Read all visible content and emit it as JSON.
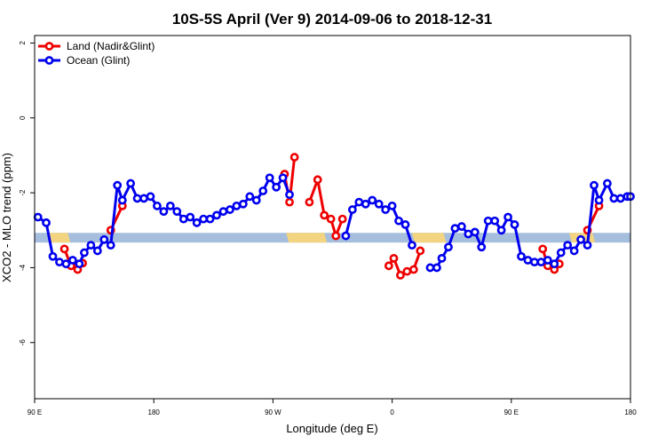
{
  "chart_data": {
    "type": "line",
    "title": "10S-5S April (Ver 9)   2014-09-06 to 2018-12-31",
    "xlabel": "Longitude (deg E)",
    "ylabel": "XCO2 - MLO trend (ppm)",
    "xlim": [
      0,
      360
    ],
    "ylim": [
      -7.5,
      2.2
    ],
    "x_ticks": [
      {
        "value": 0,
        "label": "90 E"
      },
      {
        "value": 72,
        "label": "180"
      },
      {
        "value": 144,
        "label": "90 W"
      },
      {
        "value": 216,
        "label": "0"
      },
      {
        "value": 288,
        "label": "90 E"
      },
      {
        "value": 360,
        "label": "180"
      }
    ],
    "y_ticks": [
      {
        "value": 2,
        "label": "2"
      },
      {
        "value": 0,
        "label": "0"
      },
      {
        "value": -2,
        "label": "-2"
      },
      {
        "value": -4,
        "label": "-4"
      },
      {
        "value": -6,
        "label": "-6"
      }
    ],
    "grid": false,
    "legend": "top-left",
    "map_band": {
      "y_center": -3.2,
      "half_height": 0.13,
      "ocean_color": "#a6bedd",
      "land_color": "#f7d57a",
      "land_ranges": [
        [
          8,
          20
        ],
        [
          152,
          175
        ],
        [
          228,
          247
        ],
        [
          323,
          337
        ]
      ]
    },
    "series": [
      {
        "name": "Land (Nadir&Glint)",
        "color": "#ee0000",
        "segments": [
          [
            [
              18,
              -3.5
            ],
            [
              22,
              -3.95
            ],
            [
              26,
              -4.05
            ],
            [
              29,
              -3.88
            ]
          ],
          [
            [
              46,
              -3.0
            ],
            [
              53,
              -2.35
            ]
          ],
          [
            [
              151,
              -1.5
            ],
            [
              154,
              -2.25
            ],
            [
              157,
              -1.05
            ]
          ],
          [
            [
              166,
              -2.25
            ],
            [
              171,
              -1.65
            ],
            [
              175,
              -2.6
            ],
            [
              179,
              -2.7
            ],
            [
              182,
              -3.15
            ],
            [
              186,
              -2.7
            ]
          ],
          [
            [
              214,
              -3.95
            ],
            [
              217,
              -3.75
            ],
            [
              221,
              -4.2
            ],
            [
              225,
              -4.1
            ],
            [
              229,
              -4.05
            ],
            [
              233,
              -3.55
            ]
          ],
          [
            [
              307,
              -3.5
            ],
            [
              310,
              -3.95
            ],
            [
              314,
              -4.05
            ],
            [
              317,
              -3.9
            ]
          ],
          [
            [
              334,
              -3.0
            ],
            [
              341,
              -2.35
            ]
          ]
        ]
      },
      {
        "name": "Ocean (Glint)",
        "color": "#0000ee",
        "segments": [
          [
            [
              2,
              -2.65
            ],
            [
              7,
              -2.8
            ],
            [
              11,
              -3.7
            ],
            [
              15,
              -3.85
            ],
            [
              19,
              -3.9
            ],
            [
              23,
              -3.8
            ],
            [
              27,
              -3.9
            ],
            [
              30,
              -3.6
            ],
            [
              34,
              -3.4
            ],
            [
              38,
              -3.55
            ],
            [
              42,
              -3.25
            ],
            [
              46,
              -3.4
            ],
            [
              50,
              -1.8
            ],
            [
              53,
              -2.2
            ],
            [
              58,
              -1.75
            ],
            [
              62,
              -2.15
            ],
            [
              66,
              -2.15
            ],
            [
              70,
              -2.1
            ],
            [
              74,
              -2.35
            ],
            [
              78,
              -2.5
            ],
            [
              82,
              -2.35
            ],
            [
              86,
              -2.5
            ],
            [
              90,
              -2.7
            ],
            [
              94,
              -2.65
            ],
            [
              98,
              -2.8
            ],
            [
              102,
              -2.7
            ],
            [
              106,
              -2.7
            ],
            [
              110,
              -2.6
            ],
            [
              114,
              -2.5
            ],
            [
              118,
              -2.45
            ],
            [
              122,
              -2.35
            ],
            [
              126,
              -2.3
            ],
            [
              130,
              -2.1
            ],
            [
              134,
              -2.2
            ],
            [
              138,
              -1.95
            ],
            [
              142,
              -1.6
            ],
            [
              146,
              -1.85
            ],
            [
              150,
              -1.6
            ],
            [
              154,
              -2.05
            ]
          ],
          [
            [
              188,
              -3.15
            ],
            [
              192,
              -2.45
            ],
            [
              196,
              -2.25
            ],
            [
              200,
              -2.3
            ],
            [
              204,
              -2.2
            ],
            [
              208,
              -2.3
            ],
            [
              212,
              -2.45
            ],
            [
              216,
              -2.35
            ],
            [
              220,
              -2.75
            ],
            [
              224,
              -2.85
            ],
            [
              228,
              -3.4
            ]
          ],
          [
            [
              239,
              -4.0
            ],
            [
              243,
              -4.0
            ],
            [
              246,
              -3.75
            ],
            [
              250,
              -3.45
            ],
            [
              254,
              -2.95
            ],
            [
              258,
              -2.9
            ],
            [
              262,
              -3.1
            ],
            [
              266,
              -3.05
            ],
            [
              270,
              -3.45
            ],
            [
              274,
              -2.75
            ],
            [
              278,
              -2.75
            ],
            [
              282,
              -3.0
            ],
            [
              286,
              -2.65
            ],
            [
              290,
              -2.85
            ],
            [
              294,
              -3.7
            ],
            [
              298,
              -3.8
            ],
            [
              302,
              -3.85
            ],
            [
              306,
              -3.85
            ],
            [
              310,
              -3.8
            ],
            [
              314,
              -3.9
            ],
            [
              318,
              -3.6
            ],
            [
              322,
              -3.4
            ],
            [
              326,
              -3.55
            ],
            [
              330,
              -3.25
            ],
            [
              334,
              -3.4
            ],
            [
              338,
              -1.8
            ],
            [
              341,
              -2.2
            ],
            [
              346,
              -1.75
            ],
            [
              350,
              -2.15
            ],
            [
              354,
              -2.15
            ],
            [
              358,
              -2.1
            ],
            [
              360,
              -2.1
            ]
          ]
        ]
      }
    ]
  }
}
